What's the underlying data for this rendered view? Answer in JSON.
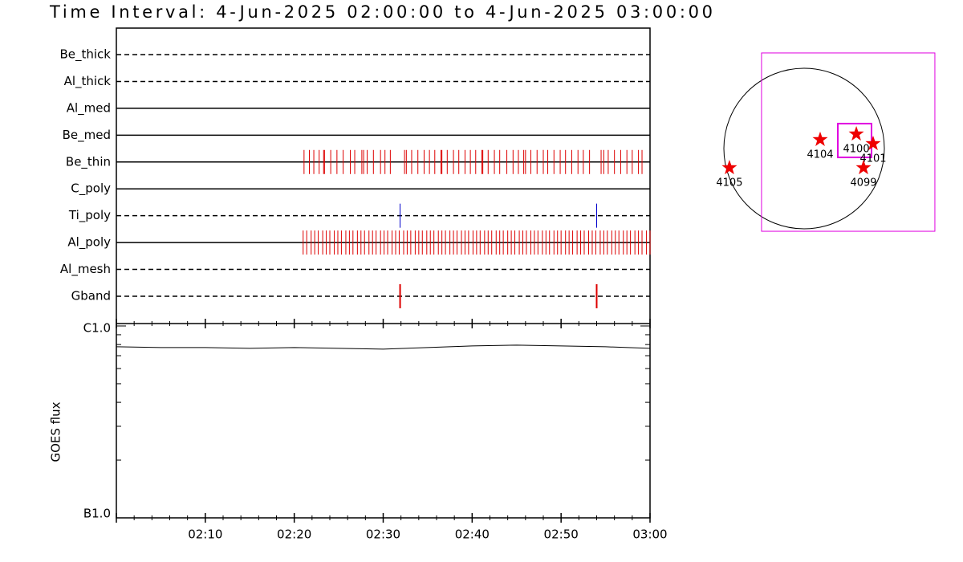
{
  "chart_data": {
    "type": "timeline",
    "title": "Time Interval:  4-Jun-2025 02:00:00 to  4-Jun-2025 03:00:00",
    "xlim": [
      0,
      60
    ],
    "xticks": [
      0,
      {
        "value": 10,
        "label": "02:10"
      },
      {
        "value": 20,
        "label": "02:20"
      },
      {
        "value": 30,
        "label": "02:30"
      },
      {
        "value": 40,
        "label": "02:40"
      },
      {
        "value": 50,
        "label": "02:50"
      },
      {
        "value": 60,
        "label": "03:00"
      }
    ],
    "xminorticks": [
      2,
      4,
      6,
      8,
      12,
      14,
      16,
      18,
      22,
      24,
      26,
      28,
      32,
      34,
      36,
      38,
      42,
      44,
      46,
      48,
      52,
      54,
      56,
      58
    ],
    "filters": [
      {
        "name": "Be_thick",
        "style": "dashed",
        "color": "#dd0000",
        "times": []
      },
      {
        "name": "Al_thick",
        "style": "dashed",
        "color": "#dd0000",
        "times": []
      },
      {
        "name": "Al_med",
        "style": "solid",
        "color": "#dd0000",
        "times": []
      },
      {
        "name": "Be_med",
        "style": "solid",
        "color": "#dd0000",
        "times": []
      },
      {
        "name": "Be_thin",
        "style": "solid",
        "color": "#dd0000",
        "times": [
          21.1,
          21.7,
          22.2,
          22.8,
          23.3,
          23.4,
          24.1,
          24.8,
          25.5,
          26.3,
          26.8,
          27.6,
          27.8,
          28.2,
          28.9,
          29.7,
          30.2,
          30.8,
          32.4,
          32.6,
          33.2,
          33.9,
          34.6,
          35.2,
          35.8,
          36.5,
          36.6,
          37.2,
          37.9,
          38.5,
          39.2,
          39.8,
          40.4,
          41.1,
          41.2,
          41.8,
          42.5,
          43.1,
          43.9,
          44.6,
          45.2,
          45.8,
          46.0,
          46.6,
          47.3,
          48.0,
          48.5,
          49.2,
          49.9,
          50.5,
          51.2,
          51.9,
          52.5,
          53.2,
          54.5,
          54.8,
          55.3,
          56.0,
          56.7,
          57.4,
          58.0,
          58.7,
          59.1
        ]
      },
      {
        "name": "C_poly",
        "style": "solid",
        "color": "#dd0000",
        "times": []
      },
      {
        "name": "Ti_poly",
        "style": "dashed",
        "color": "#0000cc",
        "times": [
          31.9,
          54.0
        ]
      },
      {
        "name": "Al_poly",
        "style": "solid",
        "color": "#dd0000",
        "times": [
          21.0,
          21.4,
          21.9,
          22.3,
          22.7,
          23.2,
          23.6,
          24.0,
          24.5,
          24.9,
          25.3,
          25.8,
          26.2,
          26.6,
          27.1,
          27.5,
          27.9,
          28.4,
          28.8,
          29.2,
          29.7,
          30.1,
          30.5,
          31.0,
          31.4,
          31.8,
          32.3,
          32.7,
          33.1,
          33.6,
          34.0,
          34.4,
          34.9,
          35.3,
          35.7,
          36.2,
          36.6,
          37.0,
          37.5,
          37.9,
          38.3,
          38.8,
          39.2,
          39.6,
          40.1,
          40.5,
          40.9,
          41.4,
          41.8,
          42.2,
          42.7,
          43.1,
          43.5,
          44.0,
          44.4,
          44.8,
          45.3,
          45.7,
          46.1,
          46.6,
          47.0,
          47.4,
          47.9,
          48.3,
          48.7,
          49.2,
          49.6,
          50.0,
          50.5,
          50.9,
          51.3,
          51.8,
          52.2,
          52.6,
          53.1,
          53.5,
          53.9,
          54.4,
          54.8,
          55.2,
          55.7,
          56.1,
          56.5,
          57.0,
          57.4,
          57.8,
          58.3,
          58.7,
          59.1,
          59.6,
          60.0
        ]
      },
      {
        "name": "Al_mesh",
        "style": "dashed",
        "color": "#dd0000",
        "times": []
      },
      {
        "name": "Gband",
        "style": "dashed",
        "color": "#dd0000",
        "tick_width": 2,
        "times": [
          31.9,
          54.0
        ]
      }
    ],
    "goes": {
      "ylabel": "GOES flux",
      "log": true,
      "ylim": [
        1e-07,
        1e-06
      ],
      "yticks": [
        {
          "value": 1e-07,
          "label": "B1.0"
        },
        {
          "value": 1e-06,
          "label": "C1.0"
        }
      ],
      "yminorticks": [
        2e-07,
        3e-07,
        4e-07,
        5e-07,
        6e-07,
        7e-07,
        8e-07,
        9e-07
      ],
      "color": "#000000",
      "x": [
        0,
        5,
        10,
        15,
        20,
        25,
        30,
        35,
        40,
        45,
        50,
        55,
        60
      ],
      "values": [
        7.79e-07,
        7.72e-07,
        7.72e-07,
        7.64e-07,
        7.72e-07,
        7.64e-07,
        7.57e-07,
        7.72e-07,
        7.87e-07,
        7.94e-07,
        7.87e-07,
        7.79e-07,
        7.64e-07
      ]
    },
    "map": {
      "solar_radius": 950,
      "fov": [
        -504,
        1548,
        -979,
        1131
      ],
      "pointing": [
        399,
        798,
        -105,
        295
      ],
      "fov_color": "#e000e0",
      "star_color": "#ee0000",
      "regions": [
        {
          "label": "4105",
          "x": -884,
          "y": -228
        },
        {
          "label": "4104",
          "x": 190,
          "y": 105
        },
        {
          "label": "4100",
          "x": 618,
          "y": 171
        },
        {
          "label": "4101",
          "x": 817,
          "y": 57
        },
        {
          "label": "4099",
          "x": 703,
          "y": -228
        }
      ]
    }
  }
}
